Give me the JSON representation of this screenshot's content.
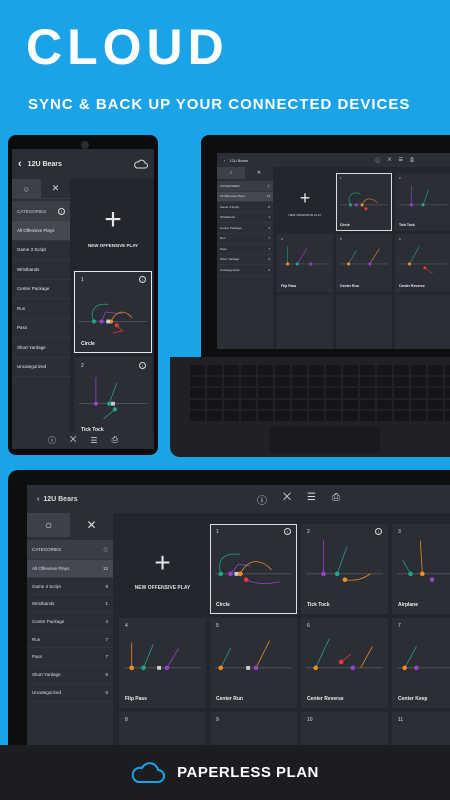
{
  "hero": {
    "title": "CLOUD",
    "subtitle": "SYNC & BACK UP YOUR CONNECTED DEVICES"
  },
  "app": {
    "team": "12U Bears",
    "new_play": "NEW OFFENSIVE PLAY",
    "categories_label": "CATEGORIES"
  },
  "categories": [
    {
      "label": "All Offensive Plays",
      "count": "12"
    },
    {
      "label": "Game 3 Script",
      "count": "8"
    },
    {
      "label": "Wristbands",
      "count": "1"
    },
    {
      "label": "Center Package",
      "count": "4"
    },
    {
      "label": "Run",
      "count": "7"
    },
    {
      "label": "Pass",
      "count": "7"
    },
    {
      "label": "Short Yardage",
      "count": "6"
    },
    {
      "label": "Uncategorized",
      "count": "0"
    }
  ],
  "plays": [
    {
      "num": "1",
      "name": "Circle"
    },
    {
      "num": "2",
      "name": "Tick Tock"
    },
    {
      "num": "3",
      "name": "Airplane"
    },
    {
      "num": "4",
      "name": "Flip Pass"
    },
    {
      "num": "5",
      "name": "Center Run"
    },
    {
      "num": "6",
      "name": "Center Reverse"
    },
    {
      "num": "7",
      "name": "Center Keep"
    },
    {
      "num": "8",
      "name": ""
    },
    {
      "num": "9",
      "name": ""
    },
    {
      "num": "10",
      "name": ""
    },
    {
      "num": "11",
      "name": ""
    }
  ],
  "icons": {
    "back": "‹",
    "cloud": "cloud-icon",
    "info": "i",
    "circle": "○",
    "close": "✕"
  },
  "colors": {
    "background": "#1aa3e6",
    "panel": "#23262c",
    "route_orange": "#f08a24",
    "route_purple": "#9b3fd1",
    "route_teal": "#1fa58c",
    "route_red": "#e23b3b"
  },
  "banner": {
    "text": "PAPERLESS PLAN"
  }
}
